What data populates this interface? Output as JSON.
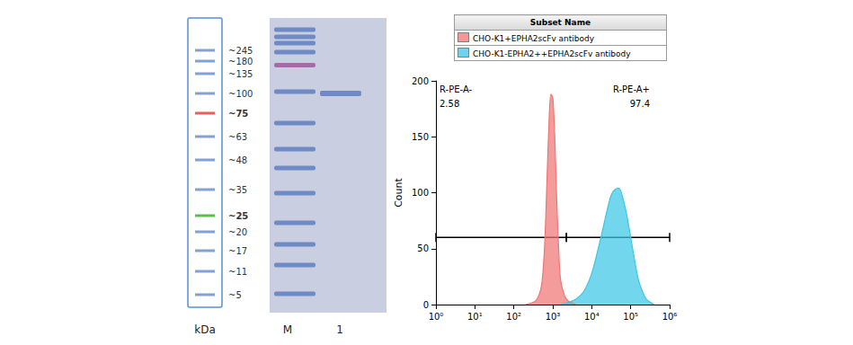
{
  "ladder": {
    "unit": "kDa",
    "bands": [
      {
        "value": 245,
        "label": "~245"
      },
      {
        "value": 180,
        "label": "~180"
      },
      {
        "value": 135,
        "label": "~135"
      },
      {
        "value": 100,
        "label": "~100"
      },
      {
        "value": 75,
        "label": "~75",
        "color": "#e8605a"
      },
      {
        "value": 63,
        "label": "~63"
      },
      {
        "value": 48,
        "label": "~48"
      },
      {
        "value": 35,
        "label": "~35"
      },
      {
        "value": 25,
        "label": "~25",
        "color": "#5cbf4a"
      },
      {
        "value": 20,
        "label": "~20"
      },
      {
        "value": 17,
        "label": "~17"
      },
      {
        "value": 11,
        "label": "~11"
      },
      {
        "value": 5,
        "label": "~5"
      }
    ]
  },
  "gel": {
    "lanes": [
      "M",
      "1"
    ],
    "bands": [
      {
        "lane": "1",
        "kda": 100
      }
    ]
  },
  "chart_data": {
    "type": "area",
    "legend_title": "Subset Name",
    "legend": "top",
    "ylabel": "Count",
    "log": "x",
    "grid": false,
    "xlim": [
      1,
      1000000
    ],
    "xticks": [
      {
        "value": 1,
        "label": "10⁰"
      },
      {
        "value": 10,
        "label": "10¹"
      },
      {
        "value": 100,
        "label": "10²"
      },
      {
        "value": 1000,
        "label": "10³"
      },
      {
        "value": 10000,
        "label": "10⁴"
      },
      {
        "value": 100000,
        "label": "10⁵"
      },
      {
        "value": 1000000,
        "label": "10⁶"
      }
    ],
    "ylim": [
      0,
      200
    ],
    "yticks": [
      0,
      50,
      100,
      150,
      200
    ],
    "series": [
      {
        "name": "CHO-K1+EPHA2scFv antibody",
        "color": "#f07575",
        "x": [
          200,
          316,
          398,
          501,
          562,
          631,
          708,
          794,
          891,
          1000,
          1122,
          1259,
          1413,
          1585,
          1995,
          2512,
          3981
        ],
        "values": [
          0,
          2,
          5,
          15,
          30,
          60,
          110,
          160,
          188,
          185,
          150,
          95,
          50,
          22,
          8,
          3,
          0
        ]
      },
      {
        "name": "CHO-K1-EPHA2++EPHA2scFv antibody",
        "color": "#3cc6e6",
        "x": [
          1585,
          2512,
          3981,
          6310,
          10000,
          15849,
          25119,
          31623,
          39811,
          50119,
          63096,
          79433,
          100000,
          125893,
          158489,
          199526,
          251189,
          398107
        ],
        "values": [
          0,
          2,
          5,
          12,
          28,
          55,
          85,
          98,
          103,
          104,
          95,
          80,
          60,
          40,
          22,
          12,
          5,
          0
        ]
      }
    ],
    "gates": [
      {
        "name": "R-PE-A-",
        "value": 2.58,
        "from": 1,
        "to": 2239,
        "y": 60
      },
      {
        "name": "R-PE-A+",
        "value": 97.4,
        "from": 2239,
        "to": 1000000,
        "y": 60
      }
    ]
  }
}
